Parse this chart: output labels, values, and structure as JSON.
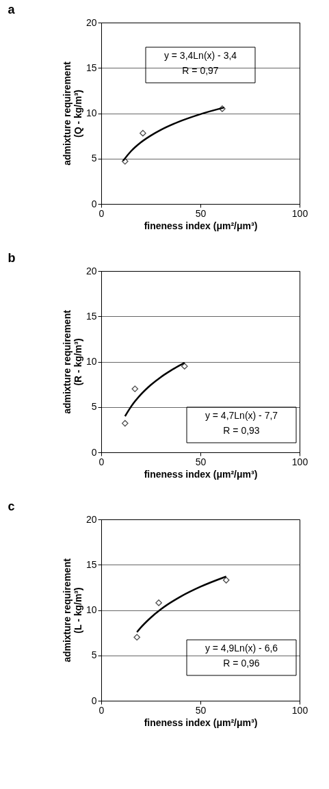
{
  "chart_data": [
    {
      "type": "scatter",
      "title": "a",
      "xlabel": "fineness index (μm²/μm³)",
      "ylabel": "admixture requirement\n(Q - kg/m³)",
      "xlim": [
        0,
        100
      ],
      "ylim": [
        0,
        20
      ],
      "xticks": [
        0,
        50,
        100
      ],
      "yticks": [
        0,
        5,
        10,
        15,
        20
      ],
      "grid": "y",
      "marker": "diamond",
      "annotations": [
        "y = 3,4Ln(x) - 3,4",
        "R = 0,97"
      ],
      "series": [
        {
          "color": "#000000",
          "x": [
            12,
            21,
            61
          ],
          "values": [
            4.7,
            7.8,
            10.5
          ]
        },
        {
          "type": "line",
          "marker": "none",
          "color": "#000000",
          "x": [
            11,
            15,
            20,
            25,
            30,
            40,
            50,
            62
          ],
          "values": [
            4.75,
            5.81,
            6.79,
            7.54,
            8.16,
            9.14,
            9.9,
            10.63
          ]
        }
      ]
    },
    {
      "type": "scatter",
      "title": "b",
      "xlabel": "fineness index (μm²/μm³)",
      "ylabel": "admixture requirement\n(R - kg/m³)",
      "xlim": [
        0,
        100
      ],
      "ylim": [
        0,
        20
      ],
      "xticks": [
        0,
        50,
        100
      ],
      "yticks": [
        0,
        5,
        10,
        15,
        20
      ],
      "grid": "y",
      "marker": "diamond",
      "annotations": [
        "y = 4,7Ln(x) - 7,7",
        "R = 0,93"
      ],
      "series": [
        {
          "color": "#000000",
          "x": [
            12,
            17,
            42
          ],
          "values": [
            3.2,
            7.0,
            9.5
          ]
        },
        {
          "type": "line",
          "marker": "none",
          "color": "#000000",
          "x": [
            12,
            15,
            20,
            25,
            30,
            35,
            42
          ],
          "values": [
            3.98,
            5.03,
            6.38,
            7.43,
            8.29,
            9.01,
            9.87
          ]
        }
      ]
    },
    {
      "type": "scatter",
      "title": "c",
      "xlabel": "fineness index (μm²/μm³)",
      "ylabel": "admixture requirement\n(L - kg/m³)",
      "xlim": [
        0,
        100
      ],
      "ylim": [
        0,
        20
      ],
      "xticks": [
        0,
        50,
        100
      ],
      "yticks": [
        0,
        5,
        10,
        15,
        20
      ],
      "grid": "y",
      "marker": "diamond",
      "annotations": [
        "y = 4,9Ln(x) - 6,6",
        "R = 0,96"
      ],
      "series": [
        {
          "color": "#000000",
          "x": [
            18,
            29,
            63
          ],
          "values": [
            7.0,
            10.8,
            13.3
          ]
        },
        {
          "type": "line",
          "marker": "none",
          "color": "#000000",
          "x": [
            18,
            20,
            25,
            30,
            40,
            50,
            63
          ],
          "values": [
            7.56,
            8.08,
            9.17,
            10.07,
            11.48,
            12.57,
            13.7
          ]
        }
      ]
    }
  ]
}
